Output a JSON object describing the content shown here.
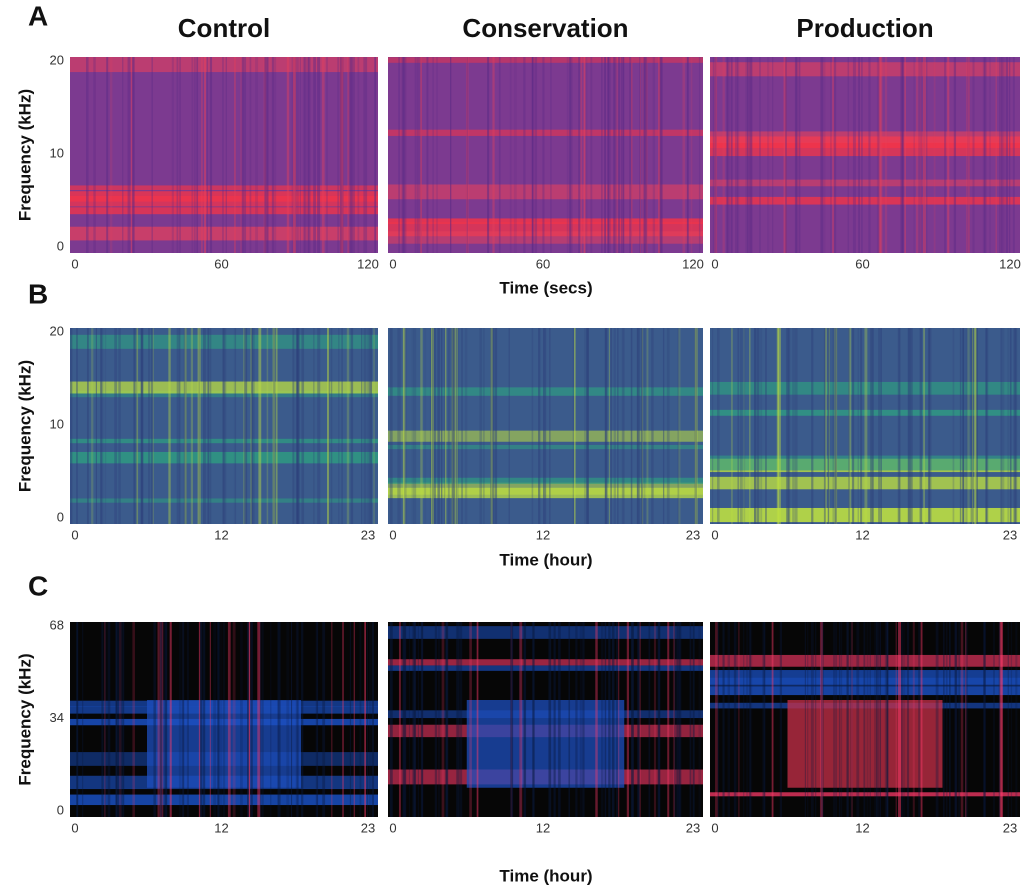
{
  "columns": [
    "Control",
    "Conservation",
    "Production"
  ],
  "rows": [
    {
      "panel": "A",
      "ylabel": "Frequency (kHz)",
      "yticks": [
        "20",
        "10",
        "0"
      ],
      "xticks": [
        "0",
        "60",
        "120"
      ],
      "xlabel": "Time (secs)"
    },
    {
      "panel": "B",
      "ylabel": "Frequency (kHz)",
      "yticks": [
        "20",
        "10",
        "0"
      ],
      "xticks": [
        "0",
        "12",
        "23"
      ],
      "xlabel": "Time (hour)"
    },
    {
      "panel": "C",
      "ylabel": "Frequency (kHz)",
      "yticks": [
        "68",
        "34",
        "0"
      ],
      "xticks": [
        "0",
        "12",
        "23"
      ],
      "xlabel": "Time (hour)"
    }
  ]
}
